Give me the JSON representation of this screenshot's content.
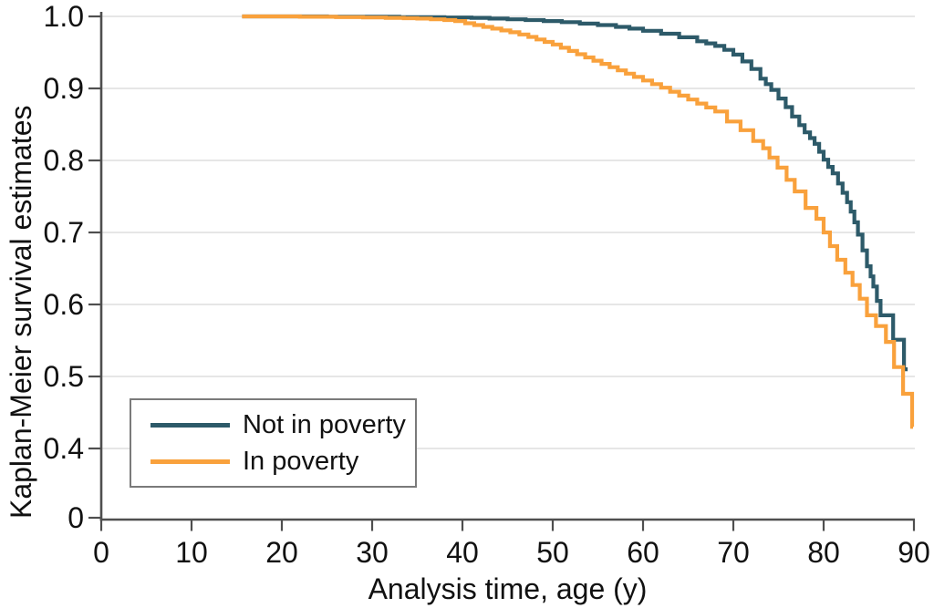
{
  "chart_data": {
    "type": "line",
    "subtype": "kaplan-meier-step",
    "title": "",
    "xlabel": "Analysis time, age (y)",
    "ylabel": "Kaplan-Meier survival estimates",
    "xlim": [
      0,
      90
    ],
    "ylim_displayed": [
      0.4,
      1.0
    ],
    "y_axis_break": "axis compressed between 0 and 0.4",
    "grid": "horizontal",
    "legend_position": "lower-left",
    "x_ticks": [
      {
        "v": 0,
        "label": "0"
      },
      {
        "v": 10,
        "label": "10"
      },
      {
        "v": 20,
        "label": "20"
      },
      {
        "v": 30,
        "label": "30"
      },
      {
        "v": 40,
        "label": "40"
      },
      {
        "v": 50,
        "label": "50"
      },
      {
        "v": 60,
        "label": "60"
      },
      {
        "v": 70,
        "label": "70"
      },
      {
        "v": 80,
        "label": "80"
      },
      {
        "v": 90,
        "label": "90"
      }
    ],
    "y_ticks": [
      {
        "v": 1.0,
        "label": "1.0"
      },
      {
        "v": 0.9,
        "label": "0.9"
      },
      {
        "v": 0.8,
        "label": "0.8"
      },
      {
        "v": 0.7,
        "label": "0.7"
      },
      {
        "v": 0.6,
        "label": "0.6"
      },
      {
        "v": 0.5,
        "label": "0.5"
      },
      {
        "v": 0.4,
        "label": "0.4"
      },
      {
        "v": 0,
        "label": "0"
      }
    ],
    "colors": {
      "axis": "#4f4f4f",
      "grid": "#e3e3e3",
      "text": "#111111",
      "legend_border": "#7a7a7a"
    },
    "series": [
      {
        "name": "Not in poverty",
        "color": "#2d5a69",
        "points": [
          [
            15.6,
            1
          ],
          [
            25,
            0.9995
          ],
          [
            33,
            0.999
          ],
          [
            38,
            0.9985
          ],
          [
            41,
            0.998
          ],
          [
            43,
            0.997
          ],
          [
            45,
            0.996
          ],
          [
            47,
            0.995
          ],
          [
            49,
            0.9935
          ],
          [
            51,
            0.992
          ],
          [
            53,
            0.99
          ],
          [
            55,
            0.988
          ],
          [
            57,
            0.9855
          ],
          [
            58.5,
            0.983
          ],
          [
            60,
            0.98
          ],
          [
            62,
            0.976
          ],
          [
            64,
            0.971
          ],
          [
            66,
            0.9655
          ],
          [
            67,
            0.9625
          ],
          [
            68,
            0.959
          ],
          [
            69,
            0.9535
          ],
          [
            70,
            0.947
          ],
          [
            71,
            0.9375
          ],
          [
            72,
            0.927
          ],
          [
            73,
            0.9135
          ],
          [
            73.6,
            0.906
          ],
          [
            74.2,
            0.898
          ],
          [
            75,
            0.886
          ],
          [
            75.8,
            0.874
          ],
          [
            76.5,
            0.861
          ],
          [
            77.3,
            0.849
          ],
          [
            77.9,
            0.839
          ],
          [
            78.5,
            0.831
          ],
          [
            79,
            0.823
          ],
          [
            79.5,
            0.812
          ],
          [
            80,
            0.801
          ],
          [
            80.5,
            0.791
          ],
          [
            81,
            0.782
          ],
          [
            81.6,
            0.768
          ],
          [
            82.1,
            0.755
          ],
          [
            82.6,
            0.742
          ],
          [
            83,
            0.729
          ],
          [
            83.4,
            0.714
          ],
          [
            83.8,
            0.697
          ],
          [
            84.3,
            0.675
          ],
          [
            84.8,
            0.653
          ],
          [
            85.2,
            0.639
          ],
          [
            85.5,
            0.625
          ],
          [
            85.9,
            0.605
          ],
          [
            86.3,
            0.585
          ],
          [
            87.7,
            0.551
          ],
          [
            88.9,
            0.51
          ],
          [
            89.3,
            0.51
          ]
        ]
      },
      {
        "name": "In poverty",
        "color": "#f9a13c",
        "points": [
          [
            15.6,
            1
          ],
          [
            22,
            0.9995
          ],
          [
            26,
            0.999
          ],
          [
            29,
            0.9985
          ],
          [
            31.5,
            0.998
          ],
          [
            33.5,
            0.9975
          ],
          [
            35,
            0.997
          ],
          [
            36.5,
            0.996
          ],
          [
            38,
            0.995
          ],
          [
            39.2,
            0.9935
          ],
          [
            40.3,
            0.9905
          ],
          [
            41.3,
            0.988
          ],
          [
            42.3,
            0.9855
          ],
          [
            43.3,
            0.983
          ],
          [
            44.3,
            0.9805
          ],
          [
            45.3,
            0.978
          ],
          [
            46.3,
            0.975
          ],
          [
            47.3,
            0.9715
          ],
          [
            48.2,
            0.968
          ],
          [
            49.1,
            0.9645
          ],
          [
            50,
            0.961
          ],
          [
            50.9,
            0.9565
          ],
          [
            51.8,
            0.952
          ],
          [
            52.7,
            0.9475
          ],
          [
            53.6,
            0.943
          ],
          [
            54.5,
            0.9385
          ],
          [
            55.4,
            0.934
          ],
          [
            56.3,
            0.9295
          ],
          [
            57.2,
            0.925
          ],
          [
            58.1,
            0.9205
          ],
          [
            59,
            0.916
          ],
          [
            60,
            0.911
          ],
          [
            61,
            0.906
          ],
          [
            62,
            0.901
          ],
          [
            63,
            0.8955
          ],
          [
            64,
            0.89
          ],
          [
            65,
            0.8845
          ],
          [
            66,
            0.879
          ],
          [
            67,
            0.8735
          ],
          [
            68,
            0.868
          ],
          [
            69.3,
            0.854
          ],
          [
            70.8,
            0.842
          ],
          [
            72.2,
            0.827
          ],
          [
            73.3,
            0.817
          ],
          [
            74,
            0.804
          ],
          [
            74.9,
            0.79
          ],
          [
            75.9,
            0.773
          ],
          [
            76.8,
            0.757
          ],
          [
            78,
            0.734
          ],
          [
            79.2,
            0.719
          ],
          [
            80,
            0.7
          ],
          [
            80.7,
            0.681
          ],
          [
            81.5,
            0.662
          ],
          [
            82.4,
            0.644
          ],
          [
            83.2,
            0.627
          ],
          [
            84,
            0.608
          ],
          [
            84.8,
            0.585
          ],
          [
            85.8,
            0.57
          ],
          [
            86.9,
            0.548
          ],
          [
            87.8,
            0.513
          ],
          [
            88.8,
            0.476
          ],
          [
            89.8,
            0.43
          ],
          [
            89.9,
            0.43
          ]
        ]
      }
    ]
  }
}
